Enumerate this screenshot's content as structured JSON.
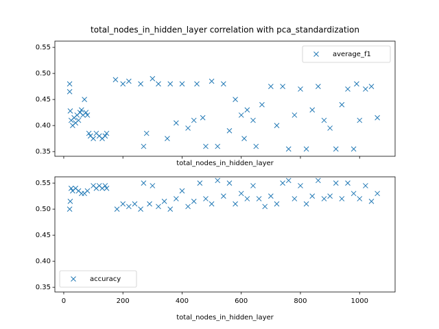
{
  "chart_data": [
    {
      "type": "scatter",
      "title": "total_nodes_in_hidden_layer correlation with pca_standardization",
      "x_label": "total_nodes_in_hidden_layer",
      "show_xtick_labels": false,
      "xlim": [
        -30,
        1120
      ],
      "ylim": [
        0.341,
        0.562
      ],
      "xticks": [
        0,
        200,
        400,
        600,
        800,
        1000
      ],
      "yticks": [
        0.35,
        {
          "value": 0.4,
          "label": "0.40"
        },
        0.45,
        {
          "value": 0.5,
          "label": "0.50"
        },
        0.55
      ],
      "legend": "upper right",
      "marker": "x",
      "series": [
        {
          "name": "average_f1",
          "color": "#1f77b4",
          "x": [
            20,
            20,
            22,
            25,
            30,
            35,
            40,
            45,
            50,
            55,
            60,
            65,
            70,
            75,
            80,
            85,
            90,
            100,
            110,
            120,
            130,
            140,
            145,
            175,
            200,
            220,
            260,
            270,
            280,
            300,
            320,
            350,
            360,
            380,
            400,
            420,
            440,
            450,
            470,
            480,
            500,
            520,
            540,
            560,
            580,
            600,
            610,
            620,
            640,
            650,
            670,
            700,
            720,
            740,
            760,
            780,
            800,
            820,
            840,
            860,
            880,
            900,
            920,
            940,
            960,
            980,
            990,
            1000,
            1020,
            1040,
            1060
          ],
          "values": [
            0.48,
            0.465,
            0.428,
            0.41,
            0.4,
            0.415,
            0.405,
            0.42,
            0.41,
            0.425,
            0.43,
            0.42,
            0.45,
            0.425,
            0.42,
            0.385,
            0.38,
            0.375,
            0.385,
            0.38,
            0.375,
            0.38,
            0.385,
            0.488,
            0.48,
            0.485,
            0.48,
            0.36,
            0.385,
            0.49,
            0.48,
            0.375,
            0.48,
            0.405,
            0.48,
            0.395,
            0.41,
            0.48,
            0.415,
            0.36,
            0.485,
            0.36,
            0.48,
            0.39,
            0.45,
            0.42,
            0.375,
            0.43,
            0.41,
            0.36,
            0.44,
            0.475,
            0.4,
            0.475,
            0.355,
            0.42,
            0.47,
            0.355,
            0.43,
            0.475,
            0.41,
            0.395,
            0.355,
            0.44,
            0.47,
            0.355,
            0.48,
            0.41,
            0.47,
            0.475,
            0.415
          ]
        }
      ]
    },
    {
      "type": "scatter",
      "x_label": "total_nodes_in_hidden_layer",
      "show_xtick_labels": true,
      "xlim": [
        -30,
        1120
      ],
      "ylim": [
        0.341,
        0.562
      ],
      "xticks": [
        0,
        200,
        400,
        600,
        800,
        1000
      ],
      "yticks": [
        0.35,
        {
          "value": 0.4,
          "label": "0.40"
        },
        0.45,
        {
          "value": 0.5,
          "label": "0.50"
        },
        0.55
      ],
      "legend": "lower left",
      "marker": "x",
      "series": [
        {
          "name": "accuracy",
          "color": "#1f77b4",
          "x": [
            20,
            22,
            25,
            30,
            40,
            50,
            60,
            70,
            80,
            100,
            110,
            120,
            130,
            140,
            145,
            180,
            200,
            220,
            240,
            260,
            270,
            290,
            300,
            320,
            340,
            360,
            380,
            400,
            420,
            440,
            460,
            480,
            500,
            520,
            540,
            560,
            580,
            600,
            620,
            640,
            660,
            680,
            700,
            720,
            740,
            760,
            780,
            800,
            820,
            840,
            860,
            880,
            900,
            920,
            940,
            960,
            980,
            1000,
            1020,
            1040,
            1060
          ],
          "values": [
            0.5,
            0.515,
            0.54,
            0.535,
            0.54,
            0.535,
            0.53,
            0.53,
            0.535,
            0.545,
            0.54,
            0.545,
            0.54,
            0.545,
            0.54,
            0.5,
            0.51,
            0.505,
            0.51,
            0.5,
            0.55,
            0.51,
            0.545,
            0.505,
            0.515,
            0.5,
            0.52,
            0.535,
            0.505,
            0.515,
            0.55,
            0.52,
            0.51,
            0.555,
            0.525,
            0.55,
            0.51,
            0.53,
            0.52,
            0.545,
            0.52,
            0.505,
            0.525,
            0.51,
            0.55,
            0.555,
            0.52,
            0.545,
            0.51,
            0.525,
            0.555,
            0.52,
            0.525,
            0.55,
            0.52,
            0.55,
            0.53,
            0.52,
            0.545,
            0.515,
            0.53
          ]
        }
      ]
    }
  ]
}
